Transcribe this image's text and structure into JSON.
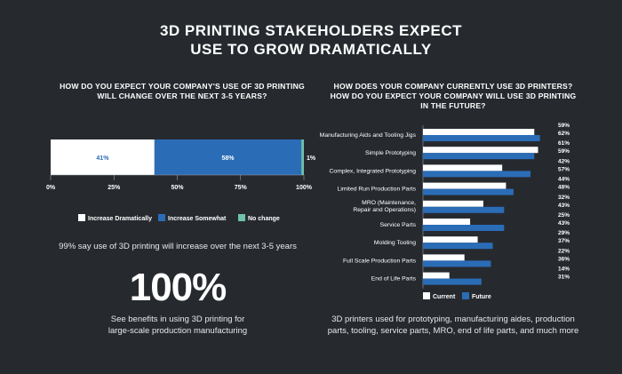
{
  "page": {
    "title_line1": "3D PRINTING STAKEHOLDERS EXPECT",
    "title_line2": "USE TO GROW DRAMATICALLY"
  },
  "colors": {
    "background": "#262a2f",
    "white": "#ffffff",
    "blue": "#2b6cb7",
    "teal": "#6fc2ab"
  },
  "left": {
    "question_line1": "HOW DO YOU EXPECT YOUR COMPANY'S USE OF 3D PRINTING",
    "question_line2": "WILL CHANGE OVER THE NEXT 3-5 YEARS?",
    "note": "99% say use of 3D printing will increase over the next 3-5 years",
    "big_number": "100%",
    "big_caption_line1": "See benefits in using 3D printing for",
    "big_caption_line2": "large-scale production manufacturing"
  },
  "right": {
    "question_line1": "HOW DOES YOUR COMPANY CURRENTLY USE 3D PRINTERS?",
    "question_line2": "HOW DO YOU EXPECT YOUR COMPANY WILL USE 3D PRINTING",
    "question_line3": "IN THE FUTURE?",
    "caption_line1": "3D printers used for prototyping, manufacturing aides, production",
    "caption_line2": "parts, tooling, service parts, MRO, end of life parts, and much more"
  },
  "chart_data": [
    {
      "type": "bar",
      "orientation": "horizontal-stacked",
      "x_ticks": [
        "0%",
        "25%",
        "50%",
        "75%",
        "100%"
      ],
      "xlim": [
        0,
        100
      ],
      "legend_position": "bottom",
      "series": [
        {
          "name": "Increase Dramatically",
          "value": 41,
          "label": "41%",
          "color": "#ffffff"
        },
        {
          "name": "Increase Somewhat",
          "value": 58,
          "label": "58%",
          "color": "#2b6cb7"
        },
        {
          "name": "No change",
          "value": 1,
          "label": "1%",
          "color": "#6fc2ab"
        }
      ]
    },
    {
      "type": "bar",
      "orientation": "horizontal-grouped",
      "xlim": [
        0,
        65
      ],
      "legend_position": "bottom",
      "series_names": [
        "Current",
        "Future"
      ],
      "series_colors": [
        "#ffffff",
        "#2b6cb7"
      ],
      "categories": [
        {
          "label": "Manufacturing Aids and Tooling Jigs",
          "current": 59,
          "future": 62,
          "current_label": "59%",
          "future_label": "62%"
        },
        {
          "label": "Simple Prototyping",
          "current": 61,
          "future": 59,
          "current_label": "61%",
          "future_label": "59%"
        },
        {
          "label": "Complex, Integrated Prototyping",
          "current": 42,
          "future": 57,
          "current_label": "42%",
          "future_label": "57%"
        },
        {
          "label": "Limited Run Production Parts",
          "current": 44,
          "future": 48,
          "current_label": "44%",
          "future_label": "48%"
        },
        {
          "label": "MRO (Maintenance,",
          "label2": "Repair and Operations)",
          "current": 32,
          "future": 43,
          "current_label": "32%",
          "future_label": "43%"
        },
        {
          "label": "Service Parts",
          "current": 25,
          "future": 43,
          "current_label": "25%",
          "future_label": "43%"
        },
        {
          "label": "Molding Tooling",
          "current": 29,
          "future": 37,
          "current_label": "29%",
          "future_label": "37%"
        },
        {
          "label": "Full Scale Production Parts",
          "current": 22,
          "future": 36,
          "current_label": "22%",
          "future_label": "36%"
        },
        {
          "label": "End of Life Parts",
          "current": 14,
          "future": 31,
          "current_label": "14%",
          "future_label": "31%"
        }
      ]
    }
  ]
}
